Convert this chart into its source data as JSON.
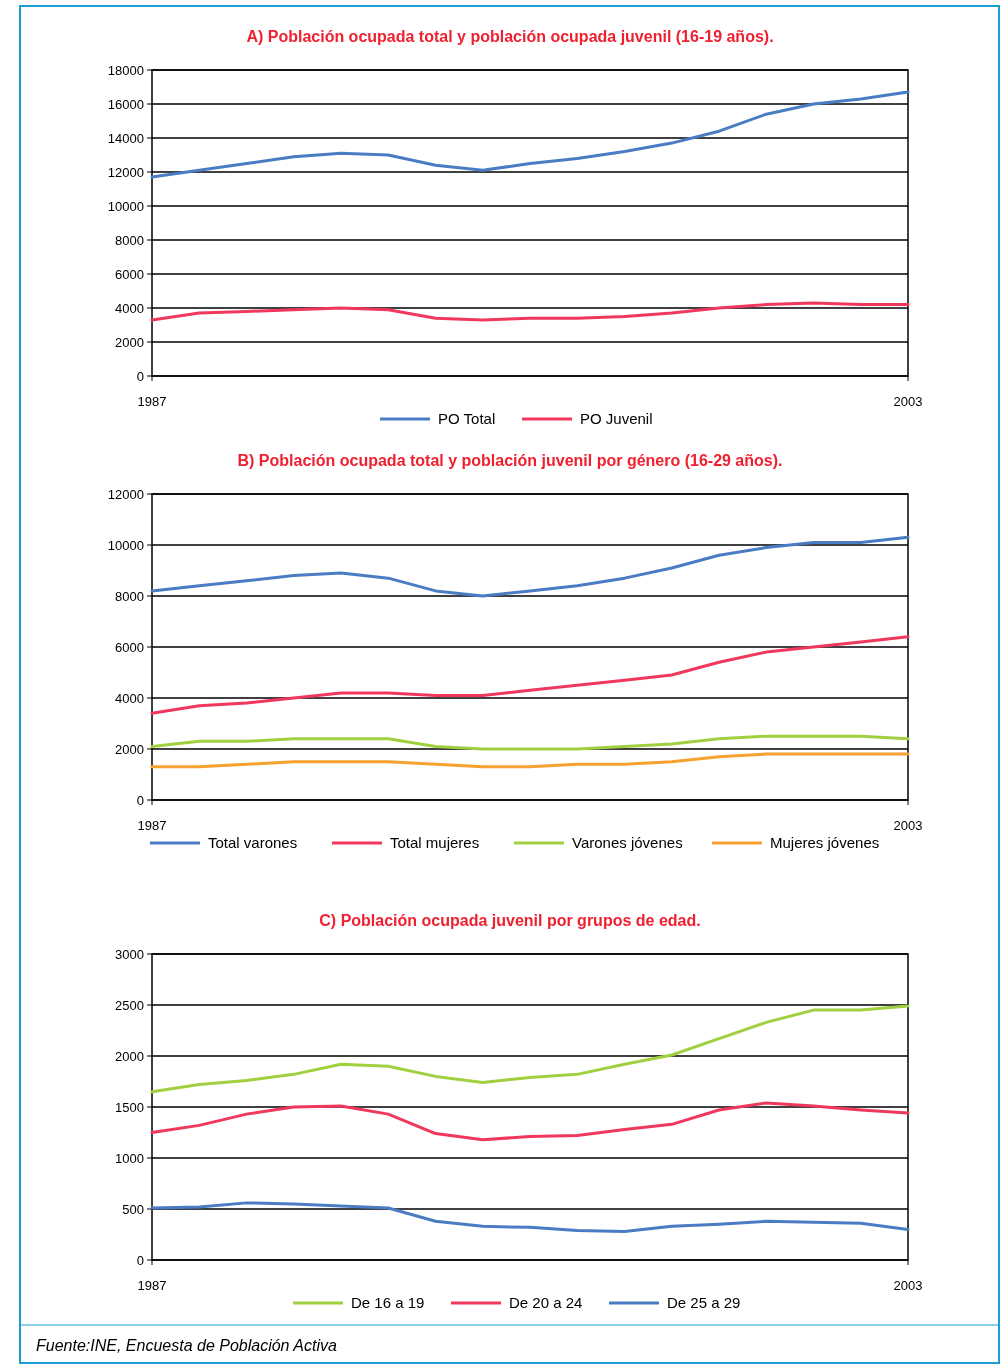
{
  "chart_data": [
    {
      "type": "line",
      "title": "A) Población ocupada total y población ocupada juvenil (16-19 años).",
      "x": [
        "1987",
        "1988",
        "1989",
        "1990",
        "1991",
        "1992",
        "1993",
        "1994",
        "1995",
        "1996",
        "1997",
        "1998",
        "1999",
        "2000",
        "2001",
        "2002",
        "2003"
      ],
      "xlim": [
        "1987",
        "2003"
      ],
      "xticks": [
        "1987",
        "2003"
      ],
      "ylim": [
        0,
        18000
      ],
      "yticks": [
        0,
        2000,
        4000,
        6000,
        8000,
        10000,
        12000,
        14000,
        16000,
        18000
      ],
      "grid": "y",
      "legend": "bottom",
      "series": [
        {
          "name": "PO Total",
          "color": "#4a7cc4",
          "values": [
            11700,
            12100,
            12500,
            12900,
            13100,
            13000,
            12400,
            12100,
            12500,
            12800,
            13200,
            13700,
            14400,
            15400,
            16000,
            16300,
            16700
          ]
        },
        {
          "name": "PO Juvenil",
          "color": "#f0385c",
          "values": [
            3300,
            3700,
            3800,
            3900,
            4000,
            3900,
            3400,
            3300,
            3400,
            3400,
            3500,
            3700,
            4000,
            4200,
            4300,
            4200,
            4200
          ]
        }
      ]
    },
    {
      "type": "line",
      "title": "B)  Población ocupada total y población juvenil por género (16-29 años).",
      "x": [
        "1987",
        "1988",
        "1989",
        "1990",
        "1991",
        "1992",
        "1993",
        "1994",
        "1995",
        "1996",
        "1997",
        "1998",
        "1999",
        "2000",
        "2001",
        "2002",
        "2003"
      ],
      "xlim": [
        "1987",
        "2003"
      ],
      "xticks": [
        "1987",
        "2003"
      ],
      "ylim": [
        0,
        12000
      ],
      "yticks": [
        0,
        2000,
        4000,
        6000,
        8000,
        10000,
        12000
      ],
      "grid": "y",
      "legend": "bottom",
      "series": [
        {
          "name": "Total varones",
          "color": "#4a7cc4",
          "values": [
            8200,
            8400,
            8600,
            8800,
            8900,
            8700,
            8200,
            8000,
            8200,
            8400,
            8700,
            9100,
            9600,
            9900,
            10100,
            10100,
            10300
          ]
        },
        {
          "name": "Total mujeres",
          "color": "#f0385c",
          "values": [
            3400,
            3700,
            3800,
            4000,
            4200,
            4200,
            4100,
            4100,
            4300,
            4500,
            4700,
            4900,
            5400,
            5800,
            6000,
            6200,
            6400
          ]
        },
        {
          "name": "Varones jóvenes",
          "color": "#a0d040",
          "values": [
            2100,
            2300,
            2300,
            2400,
            2400,
            2400,
            2100,
            2000,
            2000,
            2000,
            2100,
            2200,
            2400,
            2500,
            2500,
            2500,
            2400
          ]
        },
        {
          "name": "Mujeres jóvenes",
          "color": "#f8a030",
          "values": [
            1300,
            1300,
            1400,
            1500,
            1500,
            1500,
            1400,
            1300,
            1300,
            1400,
            1400,
            1500,
            1700,
            1800,
            1800,
            1800,
            1800
          ]
        }
      ]
    },
    {
      "type": "line",
      "title": "C) Población ocupada juvenil por grupos de edad.",
      "x": [
        "1987",
        "1988",
        "1989",
        "1990",
        "1991",
        "1992",
        "1993",
        "1994",
        "1995",
        "1996",
        "1997",
        "1998",
        "1999",
        "2000",
        "2001",
        "2002",
        "2003"
      ],
      "xlim": [
        "1987",
        "2003"
      ],
      "xticks": [
        "1987",
        "2003"
      ],
      "ylim": [
        0,
        3000
      ],
      "yticks": [
        0,
        500,
        1000,
        1500,
        2000,
        2500,
        3000
      ],
      "grid": "y",
      "legend": "bottom",
      "annotations": [
        "Fuente:INE, Encuesta de Población Activa"
      ],
      "series": [
        {
          "name": "De 16 a 19",
          "color": "#a0d040",
          "values": [
            1650,
            1720,
            1760,
            1820,
            1920,
            1900,
            1800,
            1740,
            1790,
            1820,
            1920,
            2010,
            2170,
            2330,
            2450,
            2450,
            2490
          ]
        },
        {
          "name": "De 20 a 24",
          "color": "#f0385c",
          "values": [
            1250,
            1320,
            1430,
            1500,
            1510,
            1430,
            1240,
            1180,
            1210,
            1220,
            1280,
            1330,
            1470,
            1540,
            1510,
            1470,
            1440
          ]
        },
        {
          "name": "De 25 a 29",
          "color": "#4a7cc4",
          "values": [
            510,
            520,
            560,
            550,
            530,
            510,
            380,
            330,
            320,
            290,
            280,
            330,
            350,
            380,
            370,
            360,
            300
          ]
        }
      ]
    }
  ]
}
